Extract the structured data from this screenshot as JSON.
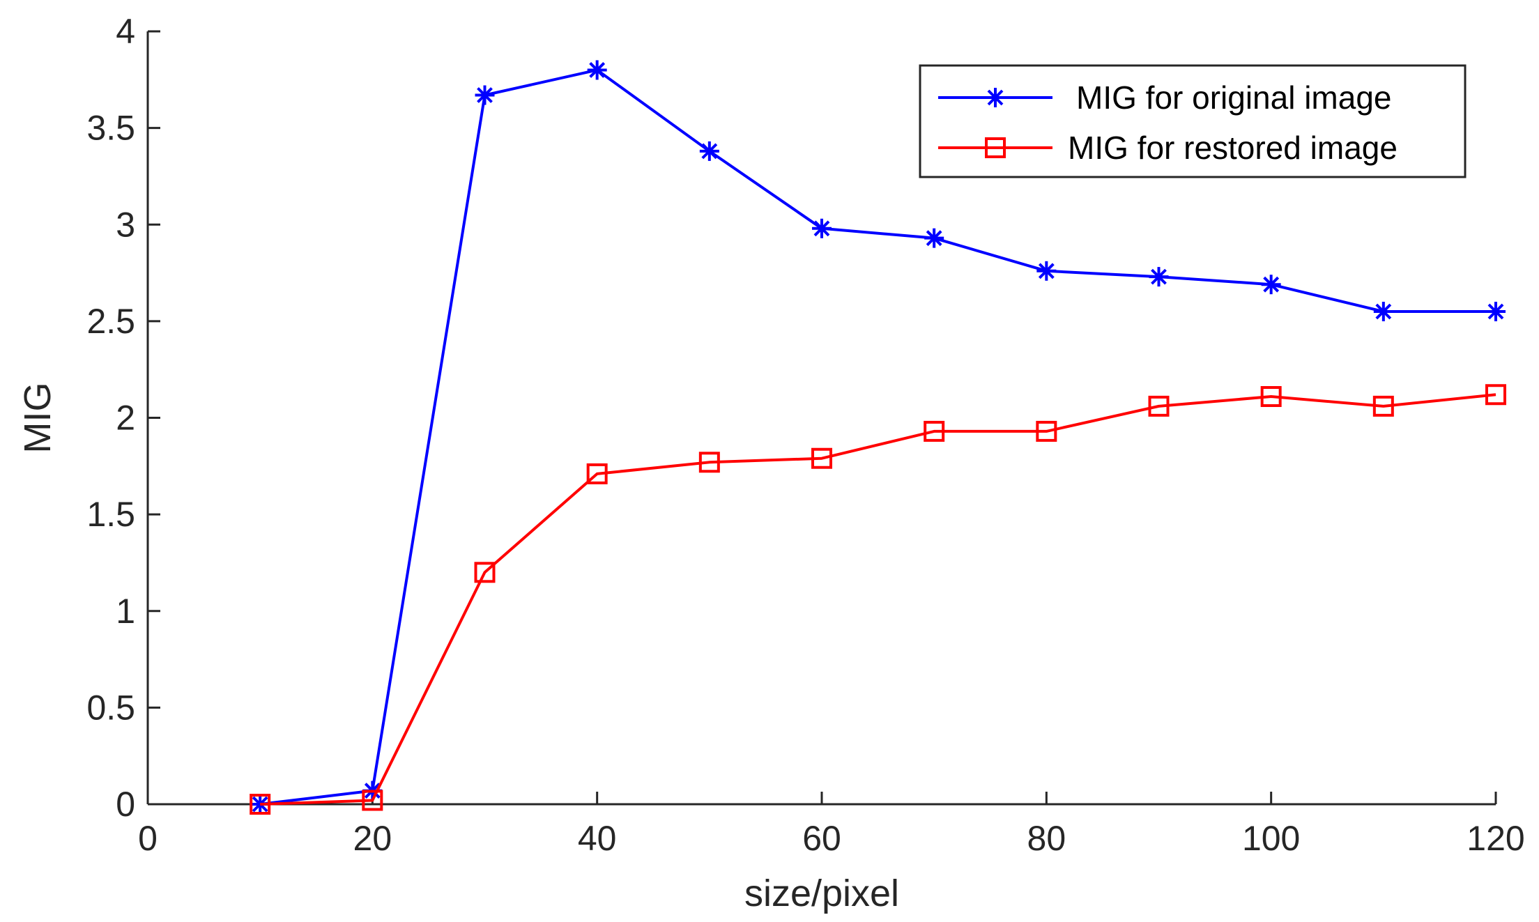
{
  "chart_data": {
    "type": "line",
    "title": "",
    "xlabel": "size/pixel",
    "ylabel": "MIG",
    "xlim": [
      0,
      120
    ],
    "ylim": [
      0,
      4
    ],
    "xticks": [
      0,
      20,
      40,
      60,
      80,
      100,
      120
    ],
    "yticks": [
      0,
      0.5,
      1,
      1.5,
      2,
      2.5,
      3,
      3.5,
      4
    ],
    "x_tick_labels": [
      "0",
      "20",
      "40",
      "60",
      "80",
      "100",
      "120"
    ],
    "y_tick_labels": [
      "0",
      "0.5",
      "1",
      "1.5",
      "2",
      "2.5",
      "3",
      "3.5",
      "4"
    ],
    "grid": false,
    "legend_position": "top-right",
    "x": [
      10,
      20,
      30,
      40,
      50,
      60,
      70,
      80,
      90,
      100,
      110,
      120
    ],
    "series": [
      {
        "name": "MIG for original image",
        "color": "#0000ff",
        "marker": "asterisk",
        "values": [
          0,
          0.07,
          3.67,
          3.8,
          3.38,
          2.98,
          2.93,
          2.76,
          2.73,
          2.69,
          2.55,
          2.55
        ]
      },
      {
        "name": "MIG for restored image",
        "color": "#ff0000",
        "marker": "square",
        "values": [
          0,
          0.02,
          1.2,
          1.71,
          1.77,
          1.79,
          1.93,
          1.93,
          2.06,
          2.11,
          2.06,
          2.12
        ]
      }
    ]
  }
}
